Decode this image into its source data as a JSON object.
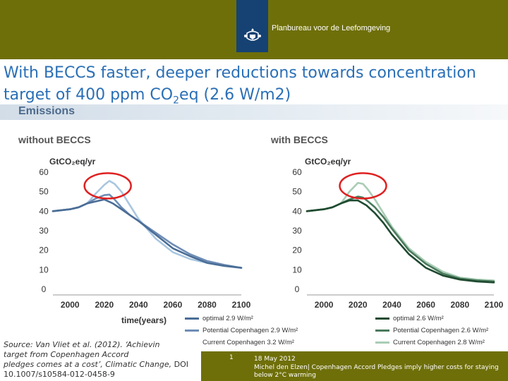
{
  "header": {
    "org_name": "Planbureau voor de Leefomgeving",
    "accent": "#6f6f0a",
    "logo_bg": "#154273"
  },
  "slide": {
    "title_part1": "With BECCS faster, deeper reductions towards concentration target of 400 ppm CO",
    "title_sub": "2",
    "title_part2": "eq (2.6 W/m2)",
    "section": "Emissions"
  },
  "chart_data": [
    {
      "type": "line",
      "title": "without BECCS",
      "ylabel": "GtCO₂eq/yr",
      "xlabel": "time(years)",
      "xlim": [
        1990,
        2100
      ],
      "ylim": [
        0,
        60
      ],
      "xticks": [
        "2000",
        "2020",
        "2040",
        "2060",
        "2080",
        "2100"
      ],
      "yticks": [
        "0",
        "10",
        "20",
        "30",
        "40",
        "50",
        "60"
      ],
      "grid": false,
      "highlight_circle_center": [
        2022,
        53
      ],
      "series": [
        {
          "name": "optimal 2.9 W/m²",
          "color": "#4a6d96",
          "x": [
            1990,
            1995,
            2000,
            2005,
            2010,
            2015,
            2020,
            2025,
            2030,
            2035,
            2040,
            2050,
            2060,
            2070,
            2080,
            2090,
            2100
          ],
          "y": [
            40,
            40.5,
            41,
            42,
            44,
            45,
            46,
            44,
            41,
            38,
            35,
            28,
            21,
            17,
            13.5,
            12,
            11
          ]
        },
        {
          "name": "Potential Copenhagen 2.9 W/m²",
          "color": "#6e8db5",
          "x": [
            1990,
            1995,
            2000,
            2005,
            2010,
            2015,
            2020,
            2023,
            2026,
            2030,
            2035,
            2040,
            2050,
            2060,
            2070,
            2080,
            2090,
            2100
          ],
          "y": [
            40,
            40.5,
            41,
            42,
            44,
            46.5,
            48.2,
            48.5,
            46,
            42,
            38,
            35,
            29,
            23,
            18,
            14.5,
            12.5,
            11
          ]
        },
        {
          "name": "Current Copenhagen 3.2 W/m²",
          "color": "#a9c6e1",
          "x": [
            1990,
            1995,
            2000,
            2005,
            2010,
            2015,
            2020,
            2023,
            2026,
            2030,
            2035,
            2040,
            2050,
            2060,
            2070,
            2080,
            2090,
            2100
          ],
          "y": [
            40,
            40.5,
            41,
            42,
            44,
            49,
            53.5,
            55.5,
            54,
            50,
            43,
            36,
            26,
            19,
            15.5,
            13.5,
            12,
            11
          ]
        }
      ]
    },
    {
      "type": "line",
      "title": "with BECCS",
      "ylabel": "GtCO₂eq/yr",
      "xlabel": "",
      "xlim": [
        1990,
        2100
      ],
      "ylim": [
        0,
        60
      ],
      "xticks": [
        "2000",
        "2020",
        "2040",
        "2060",
        "2080",
        "2100"
      ],
      "yticks": [
        "0",
        "10",
        "20",
        "30",
        "40",
        "50",
        "60"
      ],
      "grid": false,
      "highlight_circle_center": [
        2023,
        53
      ],
      "series": [
        {
          "name": "optimal 2.6 W/m²",
          "color": "#1f4a30",
          "x": [
            1990,
            1995,
            2000,
            2005,
            2010,
            2015,
            2020,
            2025,
            2030,
            2035,
            2040,
            2050,
            2060,
            2070,
            2080,
            2090,
            2100
          ],
          "y": [
            40,
            40.5,
            41,
            42,
            44,
            45.5,
            45.5,
            43,
            39,
            34,
            28,
            18,
            11,
            7,
            5,
            4,
            3.5
          ]
        },
        {
          "name": "Potential Copenhagen 2.6 W/m²",
          "color": "#4a7a5c",
          "x": [
            1990,
            1995,
            2000,
            2005,
            2010,
            2015,
            2020,
            2023,
            2026,
            2030,
            2035,
            2040,
            2050,
            2060,
            2070,
            2080,
            2090,
            2100
          ],
          "y": [
            40,
            40.5,
            41,
            42,
            44,
            46,
            47.5,
            47,
            45,
            42,
            37,
            31,
            20,
            13,
            8,
            5.5,
            4.5,
            4
          ]
        },
        {
          "name": "Current Copenhagen 2.8 W/m²",
          "color": "#a9cdb5",
          "x": [
            1990,
            1995,
            2000,
            2005,
            2010,
            2015,
            2020,
            2023,
            2026,
            2030,
            2035,
            2040,
            2050,
            2060,
            2070,
            2080,
            2090,
            2100
          ],
          "y": [
            40,
            40.5,
            41,
            42,
            44,
            50,
            54.5,
            54,
            51,
            46,
            39,
            32,
            21,
            14,
            9,
            6,
            5,
            4.5
          ]
        }
      ]
    }
  ],
  "source": {
    "line1": "Source: Van Vliet et al. (2012). ‘Achievin",
    "line2": "target from Copenhagen Accord",
    "line3_italic": "pledges comes at a cost’, Climatic Change,",
    "line3_rest": " DOI",
    "line4": "10.1007/s10584-012-0458-9"
  },
  "footer": {
    "page": "1",
    "date": "18 May 2012",
    "credit": "Michel den Elzen| Copenhagen Accord Pledges imply higher costs for staying below 2°C warming"
  }
}
